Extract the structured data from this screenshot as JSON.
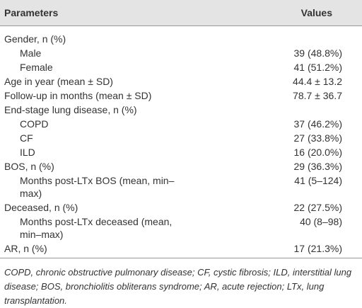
{
  "table": {
    "header": [
      "Parameters",
      "Values"
    ],
    "rows": [
      {
        "label": "Gender, n (%)",
        "children": [
          {
            "label": "Male",
            "value": "39 (48.8%)"
          },
          {
            "label": "Female",
            "value": "41 (51.2%)"
          }
        ]
      },
      {
        "label": "Age in year (mean ± SD)",
        "value": "44.4 ± 13.2"
      },
      {
        "label": "Follow-up in months (mean ± SD)",
        "value": "78.7 ± 36.7"
      },
      {
        "label": "End-stage lung disease, n (%)",
        "children": [
          {
            "label": "COPD",
            "value": "37 (46.2%)"
          },
          {
            "label": "CF",
            "value": "27 (33.8%)"
          },
          {
            "label": "ILD",
            "value": "16 (20.0%)"
          }
        ]
      },
      {
        "label": "BOS, n (%)",
        "value": "29 (36.3%)",
        "children": [
          {
            "label": "Months post-LTx BOS (mean, min–max)",
            "value": "41 (5–124)"
          }
        ]
      },
      {
        "label": "Deceased, n (%)",
        "value": "22 (27.5%)",
        "children": [
          {
            "label": "Months post-LTx deceased (mean, min–max)",
            "value": "40 (8–98)"
          }
        ]
      },
      {
        "label": "AR, n (%)",
        "value": "17 (21.3%)"
      }
    ],
    "footnote": "COPD, chronic obstructive pulmonary disease; CF, cystic fibrosis; ILD, interstitial lung disease; BOS, bronchiolitis obliterans syndrome; AR, acute rejection; LTx, lung transplantation."
  }
}
